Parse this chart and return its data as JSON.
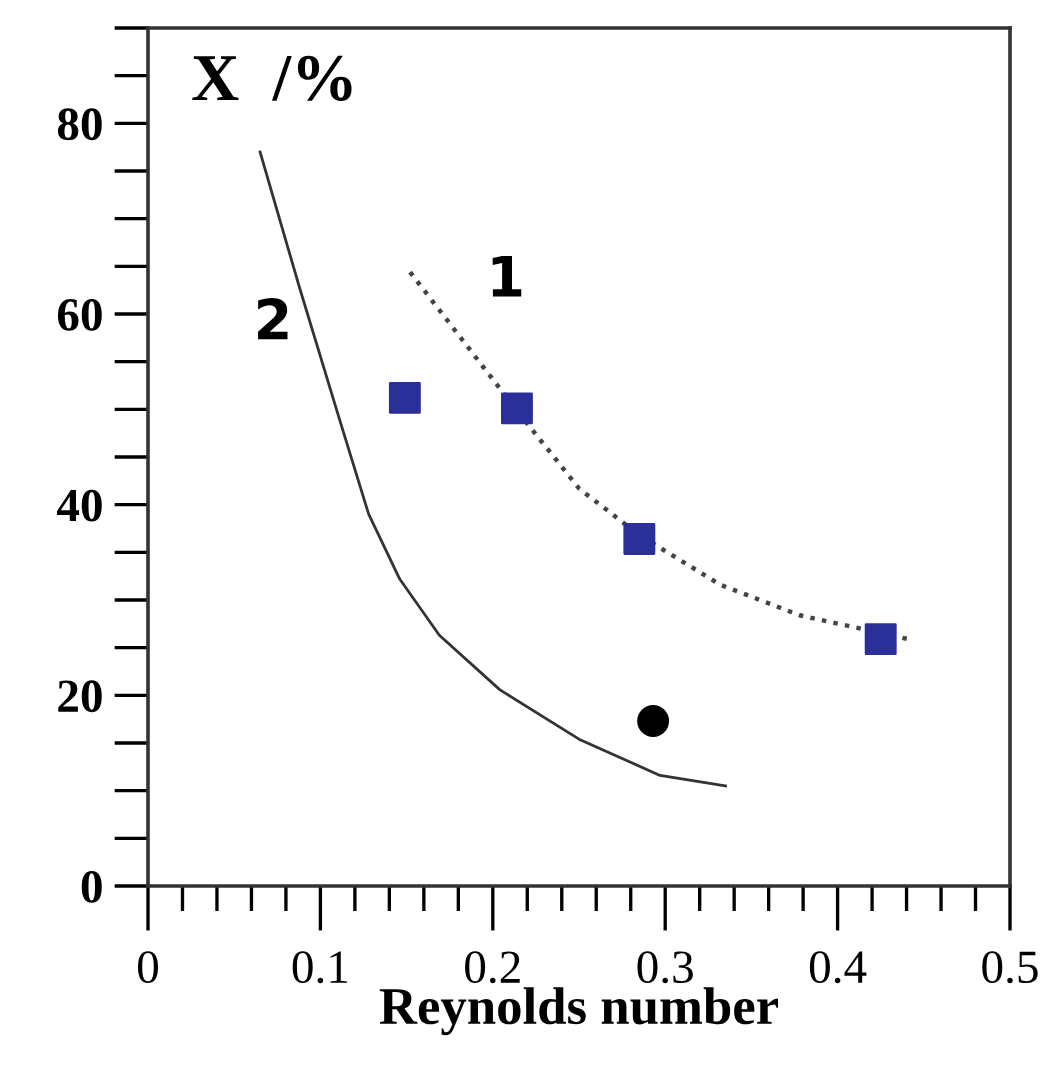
{
  "chart_data": {
    "type": "line",
    "xlabel": "Reynolds number",
    "ylabel": "X  /%",
    "xlim": [
      0,
      0.5
    ],
    "xticks": [
      0,
      {
        "value": 0.02,
        "label": null
      },
      {
        "value": 0.04,
        "label": null
      },
      {
        "value": 0.06,
        "label": null
      },
      {
        "value": 0.08,
        "label": null
      },
      0.1,
      {
        "value": 0.12,
        "label": null
      },
      {
        "value": 0.14,
        "label": null
      },
      {
        "value": 0.16,
        "label": null
      },
      {
        "value": 0.18,
        "label": null
      },
      0.2,
      {
        "value": 0.22,
        "label": null
      },
      {
        "value": 0.24,
        "label": null
      },
      {
        "value": 0.26,
        "label": null
      },
      {
        "value": 0.28,
        "label": null
      },
      0.3,
      {
        "value": 0.32,
        "label": null
      },
      {
        "value": 0.34,
        "label": null
      },
      {
        "value": 0.36,
        "label": null
      },
      {
        "value": 0.38,
        "label": null
      },
      0.4,
      {
        "value": 0.42,
        "label": null
      },
      {
        "value": 0.44,
        "label": null
      },
      {
        "value": 0.46,
        "label": null
      },
      {
        "value": 0.48,
        "label": null
      },
      0.5
    ],
    "ylim": [
      0,
      90
    ],
    "yticks": [
      0,
      20,
      40,
      60,
      80
    ],
    "grid": false,
    "series": [
      {
        "color": "#444444",
        "line_style": "dotted",
        "marker": "none",
        "x": [
          0.152,
          0.213,
          0.25,
          0.285,
          0.332,
          0.378,
          0.441
        ],
        "values": [
          64.4,
          50.1,
          41.7,
          36.8,
          31.6,
          28.4,
          25.9
        ]
      },
      {
        "color": "#333333",
        "line_style": "solid",
        "marker": "none",
        "x": [
          0.065,
          0.088,
          0.111,
          0.128,
          0.146,
          0.169,
          0.204,
          0.25,
          0.297,
          0.335
        ],
        "values": [
          77,
          62.7,
          49,
          39,
          32.2,
          26.3,
          20.6,
          15.4,
          11.6,
          10.5
        ]
      },
      {
        "type": "scatter",
        "color": "#2b2f9a",
        "marker": "square",
        "x": [
          0.149,
          0.214,
          0.285,
          0.425
        ],
        "values": [
          51.2,
          50.1,
          36.4,
          25.9
        ]
      },
      {
        "type": "scatter",
        "color": "#000000",
        "marker": "circle",
        "x": [
          0.293
        ],
        "values": [
          17.3
        ]
      }
    ],
    "annotations": [
      "1",
      "2"
    ]
  }
}
